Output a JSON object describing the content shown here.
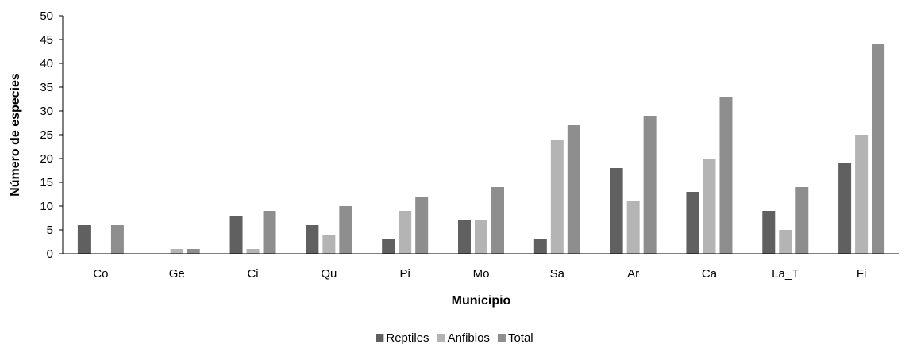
{
  "chart_data": {
    "type": "bar",
    "categories": [
      "Co",
      "Ge",
      "Ci",
      "Qu",
      "Pi",
      "Mo",
      "Sa",
      "Ar",
      "Ca",
      "La_T",
      "Fi"
    ],
    "series": [
      {
        "name": "Reptiles",
        "color": "#606060",
        "values": [
          6,
          0,
          8,
          6,
          3,
          7,
          3,
          18,
          13,
          9,
          19
        ]
      },
      {
        "name": "Anfibios",
        "color": "#b4b4b4",
        "values": [
          0,
          1,
          1,
          4,
          9,
          7,
          24,
          11,
          20,
          5,
          25
        ]
      },
      {
        "name": "Total",
        "color": "#8e8e8e",
        "values": [
          6,
          1,
          9,
          10,
          12,
          14,
          27,
          29,
          33,
          14,
          44
        ]
      }
    ],
    "xlabel": "Municipio",
    "ylabel": "Número de especies",
    "ylim": [
      0,
      50
    ],
    "yticks": [
      0,
      5,
      10,
      15,
      20,
      25,
      30,
      35,
      40,
      45,
      50
    ],
    "grid": false,
    "legend_position": "bottom"
  }
}
